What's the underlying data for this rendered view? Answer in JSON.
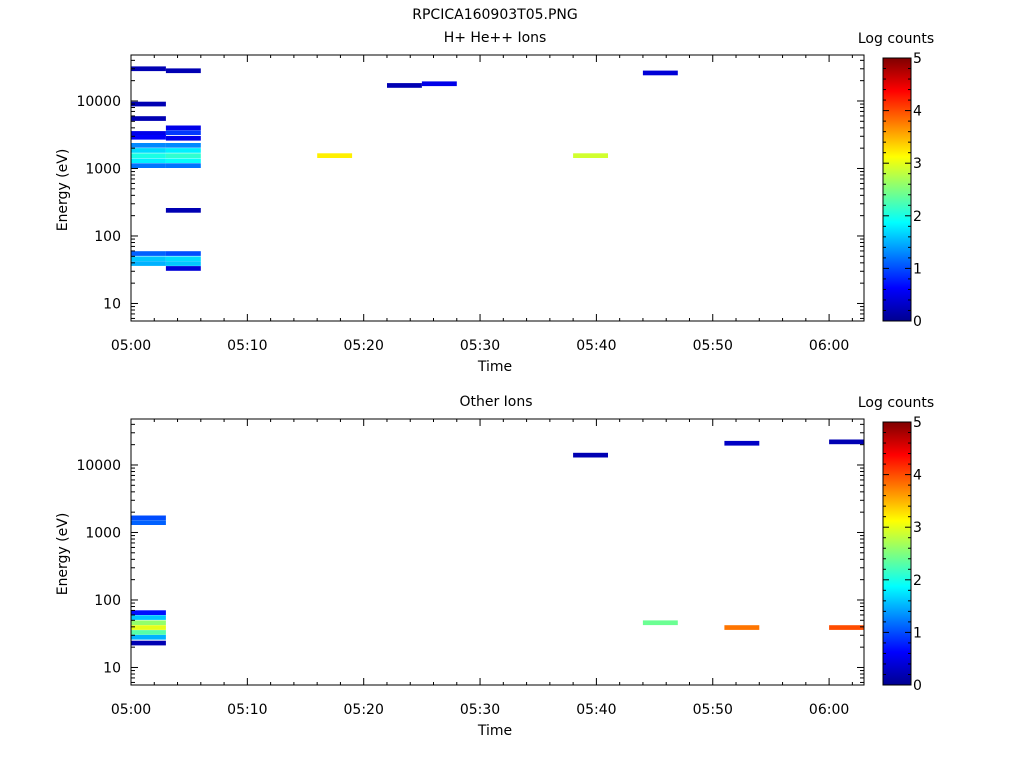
{
  "figure_title": "RPCICA160903T05.PNG",
  "colorbar_cmap": [
    "#00008f",
    "#0000ff",
    "#007fff",
    "#00ffff",
    "#7fff7f",
    "#ffff00",
    "#ff7f00",
    "#ff0000",
    "#7f0000"
  ],
  "chart_data": [
    {
      "type": "heatmap",
      "title": "H+ He++ Ions",
      "xlabel": "Time",
      "ylabel": "Energy (eV)",
      "xlim": [
        "05:00",
        "06:03"
      ],
      "ylim": [
        5.5,
        48000
      ],
      "yscale": "log",
      "xticks": [
        "05:00",
        "05:10",
        "05:20",
        "05:30",
        "05:40",
        "05:50",
        "06:00"
      ],
      "yticks": [
        "10",
        "100",
        "1000",
        "10000"
      ],
      "colorbar": {
        "label": "Log counts",
        "min": 0,
        "max": 5,
        "ticks": [
          "0",
          "1",
          "2",
          "3",
          "4",
          "5"
        ]
      },
      "time_bins": [
        "05:00",
        "05:03",
        "05:06",
        "05:10",
        "05:13",
        "05:16",
        "05:19",
        "05:22",
        "05:25",
        "05:29",
        "05:32",
        "05:35",
        "05:38",
        "05:41",
        "05:44",
        "05:48",
        "05:51",
        "05:54",
        "05:57",
        "06:00"
      ],
      "cells": [
        {
          "time": "05:00",
          "energy": 30000,
          "log_counts": 0.2
        },
        {
          "time": "05:00",
          "energy": 9000,
          "log_counts": 0.2
        },
        {
          "time": "05:00",
          "energy": 5500,
          "log_counts": 0.2
        },
        {
          "time": "05:00",
          "energy": 3300,
          "log_counts": 0.5
        },
        {
          "time": "05:00",
          "energy": 2900,
          "log_counts": 0.6
        },
        {
          "time": "05:00",
          "energy": 2200,
          "log_counts": 1.3
        },
        {
          "time": "05:00",
          "energy": 1850,
          "log_counts": 1.7
        },
        {
          "time": "05:00",
          "energy": 1550,
          "log_counts": 2.0
        },
        {
          "time": "05:00",
          "energy": 1300,
          "log_counts": 1.8
        },
        {
          "time": "05:00",
          "energy": 1100,
          "log_counts": 1.2
        },
        {
          "time": "05:00",
          "energy": 55,
          "log_counts": 1.1
        },
        {
          "time": "05:00",
          "energy": 46,
          "log_counts": 1.6
        },
        {
          "time": "05:00",
          "energy": 39,
          "log_counts": 1.5
        },
        {
          "time": "05:03",
          "energy": 28000,
          "log_counts": 0.2
        },
        {
          "time": "05:03",
          "energy": 4000,
          "log_counts": 0.5
        },
        {
          "time": "05:03",
          "energy": 3400,
          "log_counts": 0.9
        },
        {
          "time": "05:03",
          "energy": 2800,
          "log_counts": 0.5
        },
        {
          "time": "05:03",
          "energy": 2200,
          "log_counts": 1.3
        },
        {
          "time": "05:03",
          "energy": 1850,
          "log_counts": 1.8
        },
        {
          "time": "05:03",
          "energy": 1550,
          "log_counts": 2.1
        },
        {
          "time": "05:03",
          "energy": 1300,
          "log_counts": 1.9
        },
        {
          "time": "05:03",
          "energy": 1100,
          "log_counts": 1.2
        },
        {
          "time": "05:03",
          "energy": 240,
          "log_counts": 0.2
        },
        {
          "time": "05:03",
          "energy": 55,
          "log_counts": 1.0
        },
        {
          "time": "05:03",
          "energy": 46,
          "log_counts": 1.7
        },
        {
          "time": "05:03",
          "energy": 39,
          "log_counts": 1.6
        },
        {
          "time": "05:03",
          "energy": 33,
          "log_counts": 0.4
        },
        {
          "time": "05:16",
          "energy": 1550,
          "log_counts": 3.2
        },
        {
          "time": "05:38",
          "energy": 1550,
          "log_counts": 2.9
        },
        {
          "time": "05:22",
          "energy": 17000,
          "log_counts": 0.2
        },
        {
          "time": "05:25",
          "energy": 18000,
          "log_counts": 0.5
        },
        {
          "time": "05:44",
          "energy": 26000,
          "log_counts": 0.4
        }
      ]
    },
    {
      "type": "heatmap",
      "title": "Other Ions",
      "xlabel": "Time",
      "ylabel": "Energy (eV)",
      "xlim": [
        "05:00",
        "06:03"
      ],
      "ylim": [
        5.5,
        48000
      ],
      "yscale": "log",
      "xticks": [
        "05:00",
        "05:10",
        "05:20",
        "05:30",
        "05:40",
        "05:50",
        "06:00"
      ],
      "yticks": [
        "10",
        "100",
        "1000",
        "10000"
      ],
      "colorbar": {
        "label": "Log counts",
        "min": 0,
        "max": 5,
        "ticks": [
          "0",
          "1",
          "2",
          "3",
          "4",
          "5"
        ]
      },
      "time_bins": [
        "05:00",
        "05:03",
        "05:06",
        "05:10",
        "05:13",
        "05:16",
        "05:19",
        "05:22",
        "05:25",
        "05:29",
        "05:32",
        "05:35",
        "05:38",
        "05:41",
        "05:44",
        "05:48",
        "05:51",
        "05:54",
        "05:57",
        "06:00"
      ],
      "cells": [
        {
          "time": "05:00",
          "energy": 1650,
          "log_counts": 1.0
        },
        {
          "time": "05:00",
          "energy": 1400,
          "log_counts": 1.1
        },
        {
          "time": "05:00",
          "energy": 65,
          "log_counts": 0.7
        },
        {
          "time": "05:00",
          "energy": 55,
          "log_counts": 1.6
        },
        {
          "time": "05:00",
          "energy": 46,
          "log_counts": 2.6
        },
        {
          "time": "05:00",
          "energy": 39,
          "log_counts": 3.0
        },
        {
          "time": "05:00",
          "energy": 33,
          "log_counts": 2.3
        },
        {
          "time": "05:00",
          "energy": 28,
          "log_counts": 1.5
        },
        {
          "time": "05:00",
          "energy": 23,
          "log_counts": 0.2
        },
        {
          "time": "05:44",
          "energy": 46,
          "log_counts": 2.4
        },
        {
          "time": "05:51",
          "energy": 39,
          "log_counts": 3.8
        },
        {
          "time": "06:00",
          "energy": 39,
          "log_counts": 4.0
        },
        {
          "time": "05:38",
          "energy": 14000,
          "log_counts": 0.2
        },
        {
          "time": "05:51",
          "energy": 21000,
          "log_counts": 0.3
        },
        {
          "time": "06:00",
          "energy": 22000,
          "log_counts": 0.2
        }
      ]
    }
  ]
}
